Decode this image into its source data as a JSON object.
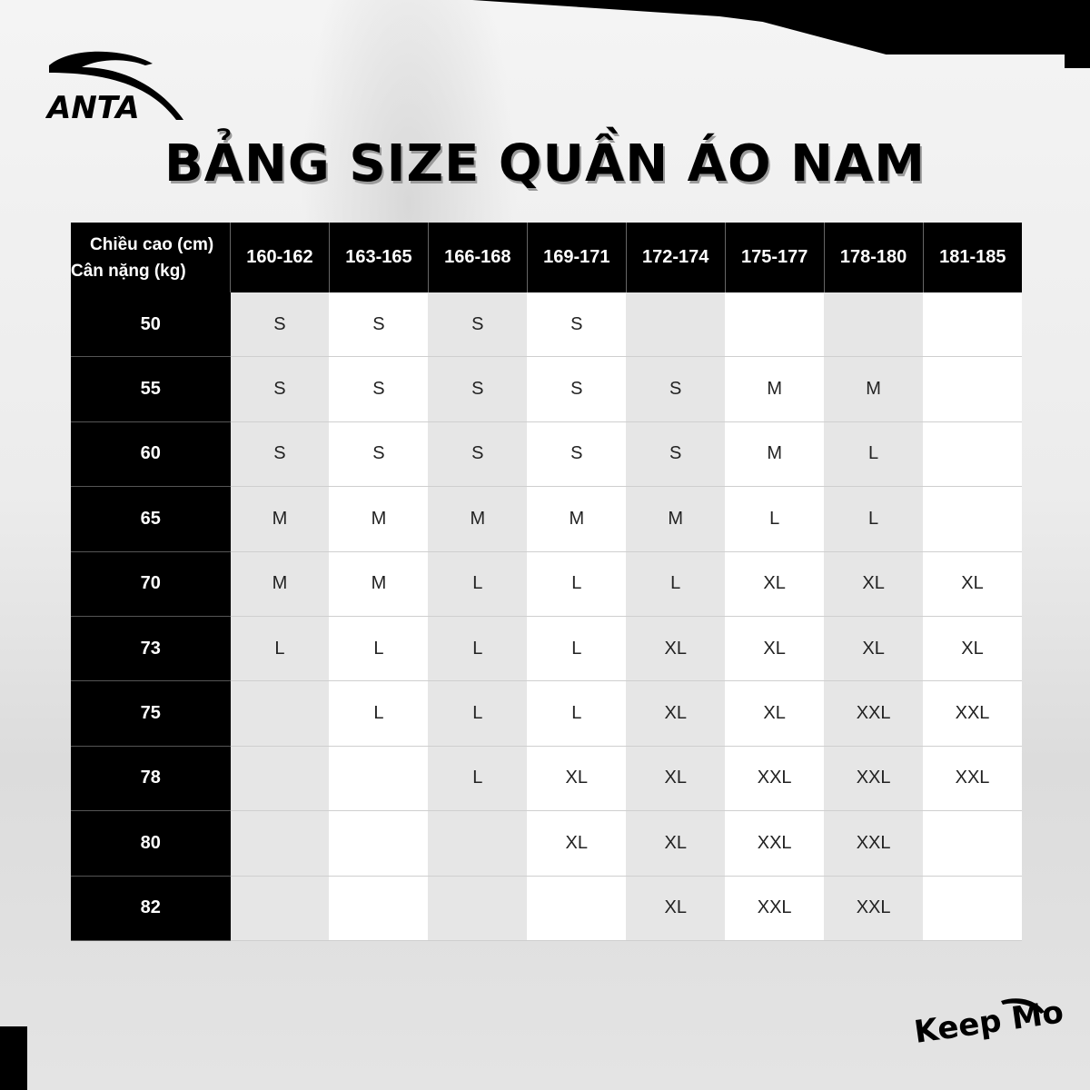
{
  "brand": {
    "logo_text": "ANTA",
    "slogan": "Keep Moving"
  },
  "title": "BẢNG SIZE QUẦN ÁO NAM",
  "table": {
    "corner_height_label": "Chiều cao (cm)",
    "corner_weight_label": "Cân nặng (kg)",
    "heights": [
      "160-162",
      "163-165",
      "166-168",
      "169-171",
      "172-174",
      "175-177",
      "178-180",
      "181-185"
    ],
    "rows": [
      {
        "weight": "50",
        "sizes": [
          "S",
          "S",
          "S",
          "S",
          "",
          "",
          "",
          ""
        ]
      },
      {
        "weight": "55",
        "sizes": [
          "S",
          "S",
          "S",
          "S",
          "S",
          "M",
          "M",
          ""
        ]
      },
      {
        "weight": "60",
        "sizes": [
          "S",
          "S",
          "S",
          "S",
          "S",
          "M",
          "L",
          ""
        ]
      },
      {
        "weight": "65",
        "sizes": [
          "M",
          "M",
          "M",
          "M",
          "M",
          "L",
          "L",
          ""
        ]
      },
      {
        "weight": "70",
        "sizes": [
          "M",
          "M",
          "L",
          "L",
          "L",
          "XL",
          "XL",
          "XL"
        ]
      },
      {
        "weight": "73",
        "sizes": [
          "L",
          "L",
          "L",
          "L",
          "XL",
          "XL",
          "XL",
          "XL"
        ]
      },
      {
        "weight": "75",
        "sizes": [
          "",
          "L",
          "L",
          "L",
          "XL",
          "XL",
          "XXL",
          "XXL"
        ]
      },
      {
        "weight": "78",
        "sizes": [
          "",
          "",
          "L",
          "XL",
          "XL",
          "XXL",
          "XXL",
          "XXL"
        ]
      },
      {
        "weight": "80",
        "sizes": [
          "",
          "",
          "",
          "XL",
          "XL",
          "XXL",
          "XXL",
          ""
        ]
      },
      {
        "weight": "82",
        "sizes": [
          "",
          "",
          "",
          "",
          "XL",
          "XXL",
          "XXL",
          ""
        ]
      }
    ]
  },
  "colors": {
    "header_bg": "#000000",
    "shaded_column": "#e6e6e6",
    "plain_column": "#ffffff"
  }
}
